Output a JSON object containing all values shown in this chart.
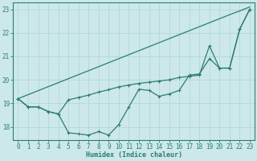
{
  "xlabel": "Humidex (Indice chaleur)",
  "x_values": [
    0,
    1,
    2,
    3,
    4,
    5,
    6,
    7,
    8,
    9,
    10,
    11,
    12,
    13,
    14,
    15,
    16,
    17,
    18,
    19,
    20,
    21,
    22,
    23
  ],
  "line_straight_y": [
    19.2,
    19.37,
    19.54,
    19.71,
    19.88,
    20.05,
    20.22,
    20.39,
    20.56,
    20.73,
    20.9,
    21.07,
    21.24,
    21.41,
    21.58,
    21.75,
    21.92,
    22.09,
    22.26,
    22.43,
    22.6,
    22.77,
    22.93,
    23.1
  ],
  "line_dip_y": [
    19.2,
    18.85,
    18.85,
    18.65,
    18.55,
    17.75,
    17.7,
    17.65,
    17.8,
    17.65,
    18.1,
    18.85,
    19.6,
    19.55,
    19.3,
    19.4,
    19.55,
    20.2,
    20.25,
    20.9,
    20.5,
    20.5,
    22.15,
    23.0
  ],
  "line_mid_y": [
    19.2,
    18.85,
    18.85,
    18.65,
    18.55,
    19.15,
    19.25,
    19.35,
    19.48,
    19.58,
    19.7,
    19.78,
    19.85,
    19.9,
    19.95,
    20.0,
    20.1,
    20.15,
    20.2,
    21.45,
    20.5,
    20.5,
    22.15,
    23.0
  ],
  "line_color": "#2d7d6e",
  "bg_color": "#cce8e8",
  "grid_color": "#b0d4d4",
  "xlim": [
    -0.5,
    23.5
  ],
  "ylim": [
    17.45,
    23.3
  ],
  "yticks": [
    18,
    19,
    20,
    21,
    22,
    23
  ],
  "xticks": [
    0,
    1,
    2,
    3,
    4,
    5,
    6,
    7,
    8,
    9,
    10,
    11,
    12,
    13,
    14,
    15,
    16,
    17,
    18,
    19,
    20,
    21,
    22,
    23
  ]
}
